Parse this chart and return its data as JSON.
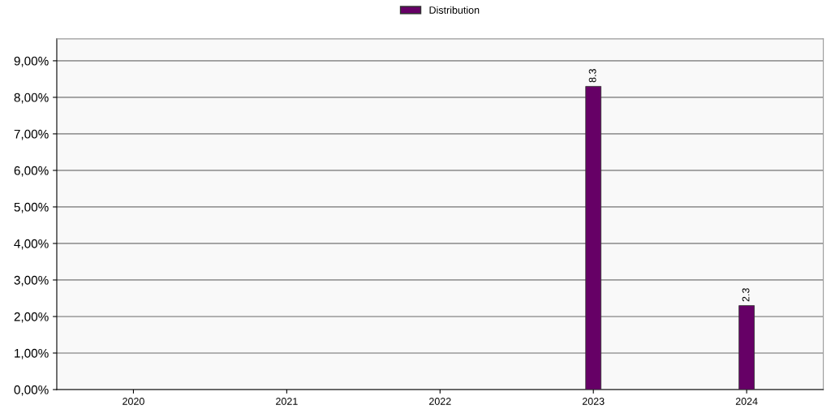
{
  "chart_data": {
    "type": "bar",
    "categories": [
      "2020",
      "2021",
      "2022",
      "2023",
      "2024"
    ],
    "series": [
      {
        "name": "Distribution",
        "color": "#660066",
        "values": [
          null,
          null,
          null,
          8.3,
          2.3
        ],
        "value_labels": [
          null,
          null,
          null,
          "8.3",
          "2.3"
        ]
      }
    ],
    "ylim": [
      0,
      9.6
    ],
    "yticks": [
      {
        "value": 0,
        "label": "0,00%"
      },
      {
        "value": 1,
        "label": "1,00%"
      },
      {
        "value": 2,
        "label": "2,00%"
      },
      {
        "value": 3,
        "label": "3,00%"
      },
      {
        "value": 4,
        "label": "4,00%"
      },
      {
        "value": 5,
        "label": "5,00%"
      },
      {
        "value": 6,
        "label": "6,00%"
      },
      {
        "value": 7,
        "label": "7,00%"
      },
      {
        "value": 8,
        "label": "8,00%"
      },
      {
        "value": 9,
        "label": "9,00%"
      }
    ],
    "grid": "y",
    "legend": "top"
  }
}
